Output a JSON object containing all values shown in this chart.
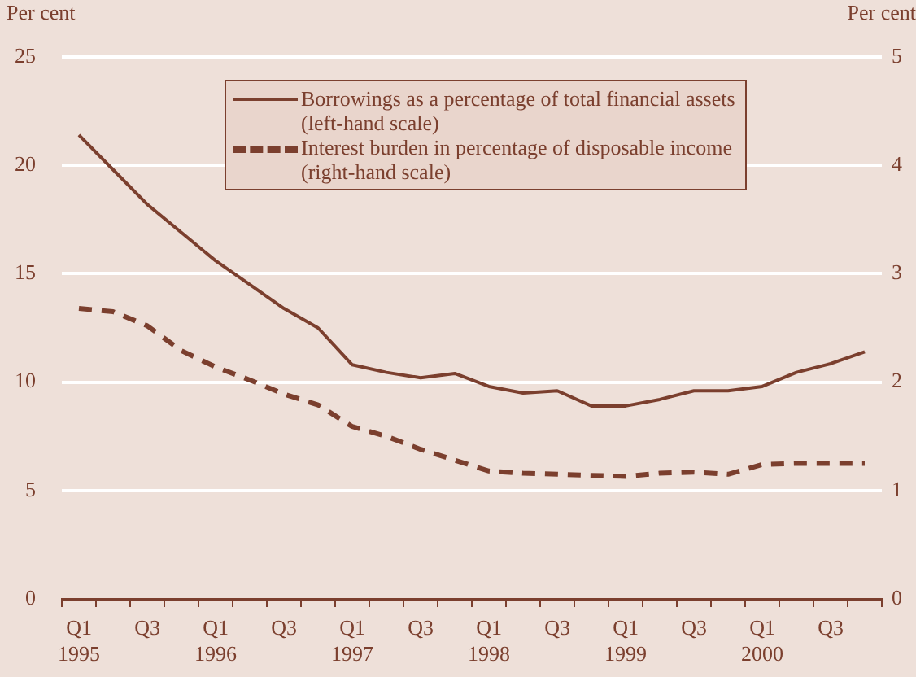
{
  "chart_data": {
    "type": "line",
    "ylabel": "Per cent",
    "y2label": "Per cent",
    "categories": [
      "Q1 1995",
      null,
      "Q3",
      null,
      "Q1 1996",
      null,
      "Q3",
      null,
      "Q1 1997",
      null,
      "Q3",
      null,
      "Q1 1998",
      null,
      "Q3",
      null,
      "Q1 1999",
      null,
      "Q3",
      null,
      "Q1 2000",
      null,
      "Q3",
      null
    ],
    "series": [
      {
        "name": "Borrowings as a percentage of total financial assets\n(left-hand scale)",
        "color": "#7b3f2e",
        "line_style": "solid",
        "values": [
          21.4,
          19.8,
          18.2,
          16.9,
          15.6,
          14.5,
          13.4,
          12.5,
          10.8,
          10.45,
          10.2,
          10.4,
          9.8,
          9.5,
          9.6,
          8.9,
          8.9,
          9.2,
          9.6,
          9.6,
          9.8,
          10.45,
          10.85,
          11.4
        ]
      },
      {
        "name": "Interest burden in percentage of disposable income\n(right-hand scale)",
        "color": "#7b3f2e",
        "line_style": "dashed",
        "axis": "y2",
        "values": [
          2.68,
          2.65,
          2.52,
          2.29,
          2.14,
          2.02,
          1.89,
          1.79,
          1.59,
          1.5,
          1.38,
          1.28,
          1.18,
          1.16,
          1.15,
          1.14,
          1.13,
          1.16,
          1.17,
          1.15,
          1.24,
          1.25,
          1.25,
          1.25
        ]
      }
    ],
    "ylim": [
      0,
      25
    ],
    "yticks": [
      0,
      5,
      10,
      15,
      20,
      25
    ],
    "y2lim": [
      0,
      5
    ],
    "y2ticks": [
      0,
      1,
      2,
      3,
      4,
      5
    ],
    "grid": "y",
    "legend": "top",
    "marker": "none"
  }
}
